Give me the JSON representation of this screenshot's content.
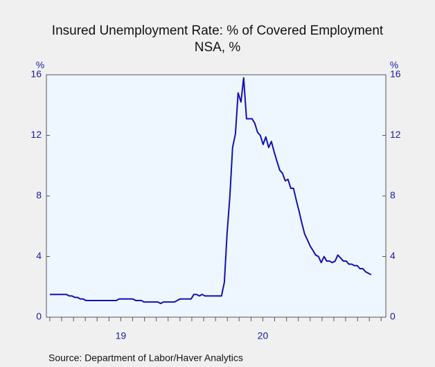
{
  "chart_data": {
    "type": "line",
    "title": "Insured Unemployment Rate: % of Covered Employment",
    "subtitle": "NSA, %",
    "source": "Source:  Department of Labor/Haver Analytics",
    "y_unit_left": "%",
    "y_unit_right": "%",
    "ylim": [
      0,
      16
    ],
    "yticks": [
      0,
      4,
      8,
      12,
      16
    ],
    "y2lim": [
      0,
      16
    ],
    "y2ticks": [
      0,
      4,
      8,
      12,
      16
    ],
    "xlim": [
      2018.976,
      2021.366
    ],
    "xticks": [
      {
        "value": 2019.5,
        "label": "19"
      },
      {
        "value": 2020.5,
        "label": "20"
      }
    ],
    "xminorticks": [
      2019,
      2019.083,
      2019.167,
      2019.25,
      2019.333,
      2019.417,
      2019.5,
      2019.583,
      2019.667,
      2019.75,
      2019.833,
      2019.917,
      2020,
      2020.083,
      2020.167,
      2020.25,
      2020.333,
      2020.417,
      2020.5,
      2020.583,
      2020.667,
      2020.75,
      2020.833,
      2020.917,
      2021,
      2021.083,
      2021.167,
      2021.25,
      2021.333
    ],
    "grid": false,
    "series": [
      {
        "color": "#1010b4",
        "x": [
          2019.0,
          2019.02,
          2019.039,
          2019.059,
          2019.078,
          2019.098,
          2019.117,
          2019.137,
          2019.156,
          2019.176,
          2019.195,
          2019.215,
          2019.234,
          2019.254,
          2019.273,
          2019.293,
          2019.312,
          2019.332,
          2019.351,
          2019.371,
          2019.39,
          2019.41,
          2019.429,
          2019.449,
          2019.468,
          2019.488,
          2019.507,
          2019.527,
          2019.546,
          2019.566,
          2019.585,
          2019.605,
          2019.624,
          2019.644,
          2019.663,
          2019.683,
          2019.702,
          2019.722,
          2019.741,
          2019.761,
          2019.78,
          2019.8,
          2019.819,
          2019.839,
          2019.858,
          2019.878,
          2019.897,
          2019.917,
          2019.936,
          2019.956,
          2019.975,
          2019.995,
          2020.014,
          2020.034,
          2020.053,
          2020.073,
          2020.092,
          2020.112,
          2020.131,
          2020.151,
          2020.17,
          2020.19,
          2020.209,
          2020.229,
          2020.248,
          2020.268,
          2020.287,
          2020.307,
          2020.326,
          2020.346,
          2020.365,
          2020.385,
          2020.404,
          2020.424,
          2020.443,
          2020.463,
          2020.482,
          2020.502,
          2020.521,
          2020.541,
          2020.56,
          2020.58,
          2020.599,
          2020.619,
          2020.638,
          2020.658,
          2020.677,
          2020.697,
          2020.716,
          2020.736,
          2020.755,
          2020.775,
          2020.794,
          2020.814,
          2020.833,
          2020.853,
          2020.872,
          2020.892,
          2020.911,
          2020.931,
          2020.95,
          2020.97,
          2020.989,
          2021.009,
          2021.028,
          2021.048,
          2021.067,
          2021.087,
          2021.106,
          2021.126,
          2021.145,
          2021.165,
          2021.184,
          2021.204,
          2021.223,
          2021.243,
          2021.262
        ],
        "values": [
          1.5,
          1.5,
          1.5,
          1.5,
          1.5,
          1.5,
          1.5,
          1.4,
          1.4,
          1.3,
          1.3,
          1.2,
          1.2,
          1.1,
          1.1,
          1.1,
          1.1,
          1.1,
          1.1,
          1.1,
          1.1,
          1.1,
          1.1,
          1.1,
          1.1,
          1.2,
          1.2,
          1.2,
          1.2,
          1.2,
          1.2,
          1.1,
          1.1,
          1.1,
          1.0,
          1.0,
          1.0,
          1.0,
          1.0,
          1.0,
          0.9,
          1.0,
          1.0,
          1.0,
          1.0,
          1.0,
          1.1,
          1.2,
          1.2,
          1.2,
          1.2,
          1.2,
          1.5,
          1.5,
          1.4,
          1.5,
          1.4,
          1.4,
          1.4,
          1.4,
          1.4,
          1.4,
          1.4,
          2.3,
          5.5,
          8.0,
          11.2,
          12.1,
          14.8,
          14.2,
          15.8,
          13.1,
          13.1,
          13.1,
          12.8,
          12.2,
          12.0,
          11.4,
          11.9,
          11.2,
          11.6,
          10.9,
          10.3,
          9.7,
          9.5,
          9.0,
          9.1,
          8.5,
          8.5,
          7.7,
          7.0,
          6.2,
          5.5,
          5.1,
          4.7,
          4.4,
          4.1,
          4.0,
          3.6,
          4.0,
          3.7,
          3.7,
          3.6,
          3.7,
          4.1,
          3.9,
          3.7,
          3.7,
          3.5,
          3.5,
          3.4,
          3.4,
          3.2,
          3.2,
          3.0,
          2.9,
          2.8
        ]
      }
    ]
  }
}
